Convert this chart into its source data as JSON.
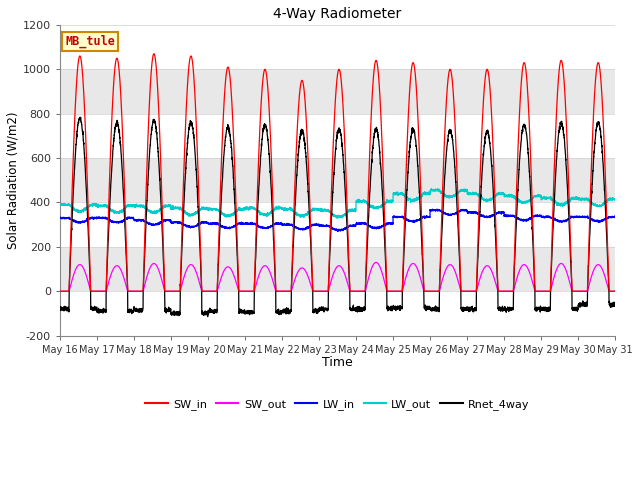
{
  "title": "4-Way Radiometer",
  "xlabel": "Time",
  "ylabel": "Solar Radiation (W/m2)",
  "ylim": [
    -200,
    1200
  ],
  "yticks": [
    -200,
    0,
    200,
    400,
    600,
    800,
    1000,
    1200
  ],
  "x_tick_labels": [
    "May 16",
    "May 17",
    "May 18",
    "May 19",
    "May 20",
    "May 21",
    "May 22",
    "May 23",
    "May 24",
    "May 25",
    "May 26",
    "May 27",
    "May 28",
    "May 29",
    "May 30",
    "May 31"
  ],
  "background_color": "#ffffff",
  "plot_bg_color": "#ffffff",
  "band_color": "#e8e8e8",
  "grid_color": "#d0d0d0",
  "legend_items": [
    "SW_in",
    "SW_out",
    "LW_in",
    "LW_out",
    "Rnet_4way"
  ],
  "legend_colors": [
    "#ff0000",
    "#ff00ff",
    "#0000ff",
    "#00cccc",
    "#000000"
  ],
  "station_label": "MB_tule",
  "station_label_color": "#cc0000",
  "station_label_bg": "#ffffcc",
  "station_label_border": "#cc8800",
  "SW_in_color": "#ff0000",
  "SW_out_color": "#ff00ff",
  "LW_in_color": "#0000ff",
  "LW_out_color": "#00cccc",
  "Rnet_color": "#000000",
  "n_days": 15,
  "pts_per_day": 288,
  "SW_in_peak": [
    1060,
    1050,
    1070,
    1060,
    1010,
    1000,
    950,
    1000,
    1040,
    1030,
    1000,
    1000,
    1030,
    1040,
    1030
  ],
  "SW_out_peak": [
    120,
    115,
    125,
    120,
    110,
    115,
    105,
    115,
    130,
    125,
    120,
    115,
    120,
    125,
    120
  ],
  "LW_in_day": [
    330,
    330,
    320,
    310,
    305,
    305,
    300,
    295,
    305,
    335,
    365,
    355,
    340,
    335,
    335
  ],
  "LW_out_day": [
    390,
    385,
    385,
    375,
    370,
    375,
    370,
    365,
    405,
    440,
    455,
    440,
    430,
    420,
    415
  ],
  "Rnet_peak": [
    780,
    760,
    770,
    760,
    740,
    750,
    725,
    730,
    730,
    730,
    725,
    720,
    750,
    760,
    760
  ],
  "Rnet_night": [
    -80,
    -90,
    -85,
    -100,
    -90,
    -95,
    -90,
    -80,
    -80,
    -75,
    -80,
    -80,
    -80,
    -80,
    -60
  ]
}
